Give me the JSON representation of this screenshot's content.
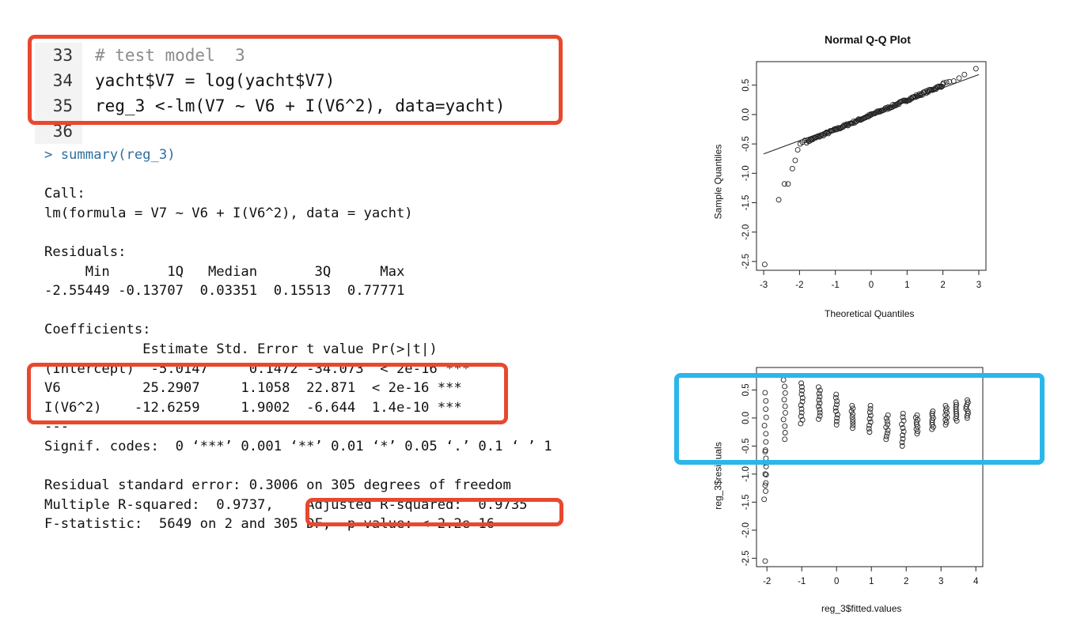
{
  "editor": {
    "lines": [
      {
        "no": "33",
        "text": "# test model  3",
        "comment": true
      },
      {
        "no": "34",
        "text": "yacht$V7 = log(yacht$V7)",
        "comment": false
      },
      {
        "no": "35",
        "text": "reg_3 <-lm(V7 ~ V6 + I(V6^2), data=yacht)",
        "comment": false
      },
      {
        "no": "36",
        "text": "",
        "comment": false
      }
    ]
  },
  "console": {
    "prompt_line": "> summary(reg_3)",
    "lines": [
      "Call:",
      "lm(formula = V7 ~ V6 + I(V6^2), data = yacht)",
      "",
      "Residuals:",
      "     Min       1Q   Median       3Q      Max ",
      "-2.55449 -0.13707  0.03351  0.15513  0.77771 ",
      "",
      "Coefficients:",
      "            Estimate Std. Error t value Pr(>|t|)    ",
      "(Intercept)  -5.0147     0.1472 -34.073  < 2e-16 ***",
      "V6          25.2907     1.1058  22.871  < 2e-16 ***",
      "I(V6^2)    -12.6259     1.9002  -6.644  1.4e-10 ***",
      "---",
      "Signif. codes:  0 ‘***’ 0.001 ‘**’ 0.01 ‘*’ 0.05 ‘.’ 0.1 ‘ ’ 1",
      "",
      "Residual standard error: 0.3006 on 305 degrees of freedom",
      "Multiple R-squared:  0.9737,\tAdjusted R-squared:  0.9735 ",
      "F-statistic:  5649 on 2 and 305 DF,  p-value: < 2.2e-16"
    ]
  },
  "colors": {
    "highlight_red": "#e8482e",
    "highlight_blue": "#2ab6ea",
    "prompt": "#2e6f9e"
  },
  "chart_data": [
    {
      "type": "scatter",
      "title": "Normal Q-Q Plot",
      "xlabel": "Theoretical Quantiles",
      "ylabel": "Sample Quantiles",
      "xlim": [
        -3,
        3
      ],
      "ylim": [
        -2.55,
        0.78
      ],
      "xticks": [
        "-3",
        "-2",
        "-1",
        "0",
        "1",
        "2",
        "3"
      ],
      "yticks": [
        "-2.5",
        "-2.0",
        "-1.5",
        "-1.0",
        "-0.5",
        "0.0",
        "0.5"
      ],
      "reference_line": {
        "x": [
          -3,
          3
        ],
        "y": [
          -0.67,
          0.68
        ]
      }
    },
    {
      "type": "scatter",
      "title": "",
      "xlabel": "reg_3$fitted.values",
      "ylabel": "reg_3$residuals",
      "xlim": [
        -2.1,
        4
      ],
      "ylim": [
        -2.6,
        0.8
      ],
      "xticks": [
        "-2",
        "-1",
        "0",
        "1",
        "2",
        "3",
        "4"
      ],
      "yticks": [
        "-2.5",
        "-2.0",
        "-1.5",
        "-1.0",
        "-0.5",
        "0.0",
        "0.5"
      ]
    }
  ]
}
